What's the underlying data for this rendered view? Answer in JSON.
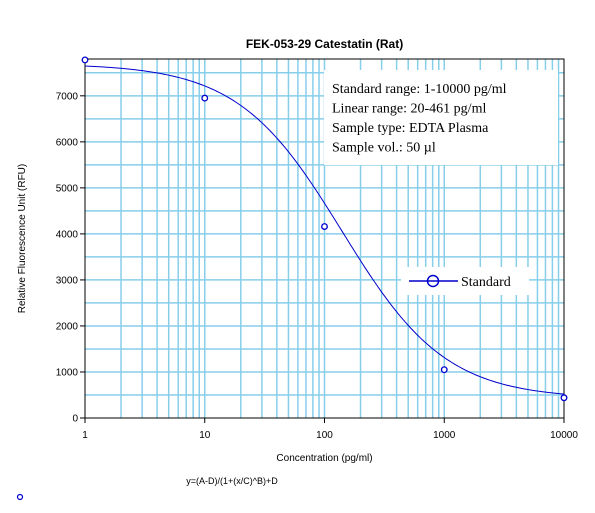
{
  "chart_data": {
    "type": "scatter",
    "title": "FEK-053-29 Catestatin (Rat)",
    "xlabel": "Concentration (pg/ml)",
    "ylabel": "Relative Fluorescence Unit (RFU)",
    "x_scale": "log",
    "xlim": [
      1,
      10000
    ],
    "ylim": [
      0,
      7800
    ],
    "x_ticks": [
      1,
      10,
      100,
      1000,
      10000
    ],
    "x_tick_labels": [
      "1",
      "10",
      "100",
      "1000",
      "10000"
    ],
    "y_ticks": [
      0,
      1000,
      2000,
      3000,
      4000,
      5000,
      6000,
      7000
    ],
    "y_tick_labels": [
      "0",
      "1000",
      "2000",
      "3000",
      "4000",
      "5000",
      "6000",
      "7000"
    ],
    "grid": true,
    "series": [
      {
        "name": "Standard",
        "marker": "circle",
        "color": "#0000cc",
        "x": [
          1,
          10,
          100,
          1000,
          10000
        ],
        "y": [
          7780,
          6950,
          4160,
          1050,
          440
        ]
      }
    ],
    "fit": {
      "equation": "y=(A-D)/(1+(x/C)^B)+D",
      "A": 7700,
      "B": 1.0,
      "C": 140,
      "D": 420,
      "color": "#0000cc"
    },
    "annotation_lines": [
      "Standard range: 1-10000 pg/ml",
      "Linear range: 20-461 pg/ml",
      "Sample type: EDTA Plasma",
      "Sample vol.: 50 µl"
    ],
    "legend": {
      "position": "right",
      "entries": [
        "Standard"
      ]
    },
    "colors": {
      "grid": "#87ceeb",
      "data": "#0000cc",
      "axis": "#000000"
    }
  }
}
